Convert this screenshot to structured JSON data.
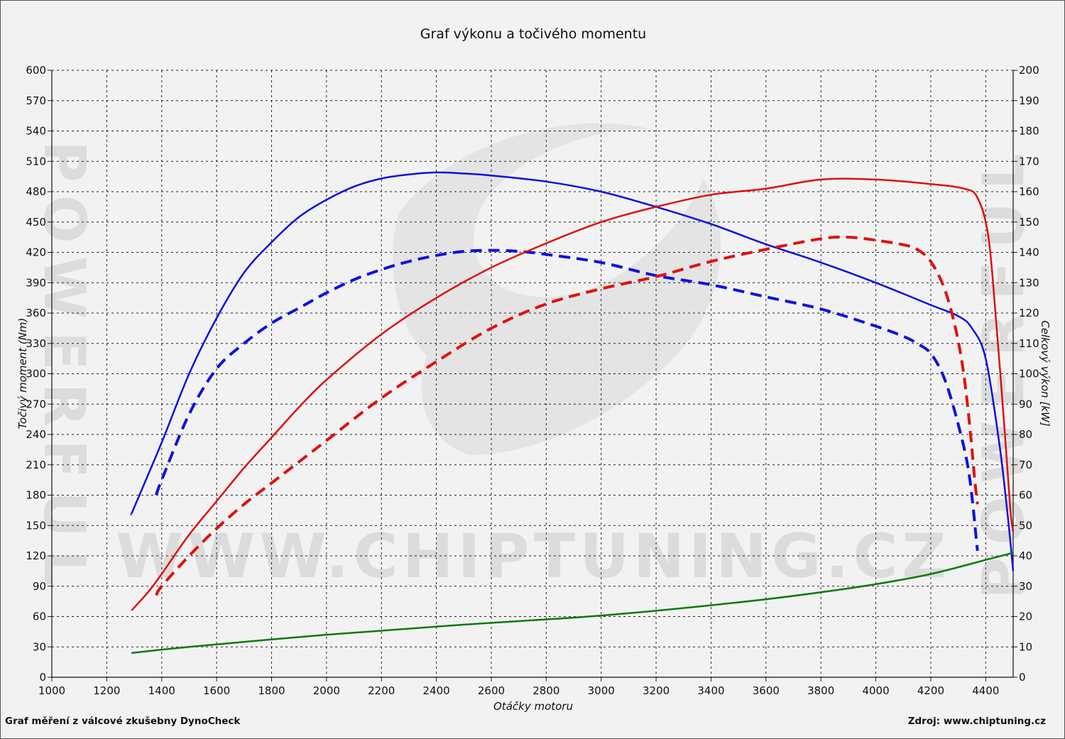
{
  "chart_data": {
    "type": "line",
    "title": "Graf výkonu a točivého momentu",
    "xlabel": "Otáčky motoru",
    "ylabel_left": "Točivý moment (Nm)",
    "ylabel_right": "Celkový výkon [kW]",
    "xlim": [
      1000,
      4500
    ],
    "ylim_left": [
      0,
      600
    ],
    "ylim_right": [
      0,
      200
    ],
    "x_ticks": [
      "1000",
      "1200",
      "1400",
      "1600",
      "1800",
      "2000",
      "2200",
      "2400",
      "2600",
      "2800",
      "3000",
      "3200",
      "3400",
      "3600",
      "3800",
      "4000",
      "4200",
      "4400"
    ],
    "y_ticks_left": [
      "0",
      "30",
      "60",
      "90",
      "120",
      "150",
      "180",
      "210",
      "240",
      "270",
      "300",
      "330",
      "360",
      "390",
      "420",
      "450",
      "480",
      "510",
      "540",
      "570",
      "600"
    ],
    "y_ticks_right": [
      "0",
      "10",
      "20",
      "30",
      "40",
      "50",
      "60",
      "70",
      "80",
      "90",
      "100",
      "110",
      "120",
      "130",
      "140",
      "150",
      "160",
      "170",
      "180",
      "190",
      "200"
    ],
    "grid": true,
    "series": [
      {
        "axis": "left",
        "color": "#1010e0",
        "style": "solid",
        "points": [
          [
            1290,
            162
          ],
          [
            1300,
            168
          ],
          [
            1400,
            232
          ],
          [
            1500,
            300
          ],
          [
            1600,
            355
          ],
          [
            1700,
            400
          ],
          [
            1800,
            430
          ],
          [
            1900,
            455
          ],
          [
            2000,
            472
          ],
          [
            2100,
            485
          ],
          [
            2200,
            493
          ],
          [
            2300,
            497
          ],
          [
            2400,
            499
          ],
          [
            2500,
            498
          ],
          [
            2600,
            496
          ],
          [
            2800,
            490
          ],
          [
            3000,
            480
          ],
          [
            3200,
            465
          ],
          [
            3400,
            448
          ],
          [
            3600,
            428
          ],
          [
            3800,
            410
          ],
          [
            4000,
            390
          ],
          [
            4200,
            368
          ],
          [
            4300,
            357
          ],
          [
            4350,
            345
          ],
          [
            4400,
            315
          ],
          [
            4450,
            230
          ],
          [
            4480,
            160
          ],
          [
            4500,
            105
          ]
        ]
      },
      {
        "axis": "left",
        "color": "#1010e0",
        "style": "dashed",
        "points": [
          [
            1380,
            180
          ],
          [
            1400,
            195
          ],
          [
            1500,
            260
          ],
          [
            1600,
            305
          ],
          [
            1700,
            330
          ],
          [
            1800,
            350
          ],
          [
            1900,
            365
          ],
          [
            2000,
            380
          ],
          [
            2100,
            393
          ],
          [
            2200,
            403
          ],
          [
            2300,
            411
          ],
          [
            2400,
            417
          ],
          [
            2500,
            421
          ],
          [
            2600,
            422
          ],
          [
            2700,
            421
          ],
          [
            2800,
            418
          ],
          [
            3000,
            410
          ],
          [
            3200,
            397
          ],
          [
            3400,
            388
          ],
          [
            3600,
            376
          ],
          [
            3800,
            364
          ],
          [
            4000,
            347
          ],
          [
            4100,
            337
          ],
          [
            4150,
            330
          ],
          [
            4200,
            320
          ],
          [
            4250,
            295
          ],
          [
            4300,
            250
          ],
          [
            4340,
            200
          ],
          [
            4370,
            125
          ]
        ]
      },
      {
        "axis": "right",
        "color": "#e01010",
        "style": "solid",
        "points": [
          [
            1290,
            22
          ],
          [
            1350,
            28
          ],
          [
            1400,
            34
          ],
          [
            1500,
            47
          ],
          [
            1600,
            58
          ],
          [
            1700,
            69
          ],
          [
            1800,
            79
          ],
          [
            1900,
            89
          ],
          [
            2000,
            98
          ],
          [
            2200,
            113
          ],
          [
            2400,
            125
          ],
          [
            2600,
            135
          ],
          [
            2800,
            143
          ],
          [
            3000,
            150
          ],
          [
            3200,
            155
          ],
          [
            3400,
            159
          ],
          [
            3600,
            161
          ],
          [
            3800,
            164
          ],
          [
            4000,
            164
          ],
          [
            4200,
            162.5
          ],
          [
            4320,
            161
          ],
          [
            4370,
            158
          ],
          [
            4410,
            145
          ],
          [
            4440,
            115
          ],
          [
            4470,
            80
          ],
          [
            4490,
            55
          ],
          [
            4500,
            48
          ]
        ]
      },
      {
        "axis": "right",
        "color": "#e01010",
        "style": "dashed",
        "points": [
          [
            1380,
            27
          ],
          [
            1400,
            30
          ],
          [
            1500,
            40
          ],
          [
            1600,
            49
          ],
          [
            1700,
            57
          ],
          [
            1800,
            64
          ],
          [
            1900,
            71
          ],
          [
            2000,
            78
          ],
          [
            2200,
            92
          ],
          [
            2400,
            104
          ],
          [
            2600,
            115
          ],
          [
            2800,
            123
          ],
          [
            3000,
            128
          ],
          [
            3200,
            132
          ],
          [
            3400,
            137
          ],
          [
            3600,
            141
          ],
          [
            3800,
            144.5
          ],
          [
            3900,
            145
          ],
          [
            4000,
            144
          ],
          [
            4100,
            142.5
          ],
          [
            4150,
            141
          ],
          [
            4200,
            137
          ],
          [
            4250,
            128
          ],
          [
            4290,
            115
          ],
          [
            4320,
            100
          ],
          [
            4345,
            80
          ],
          [
            4360,
            65
          ],
          [
            4370,
            57
          ]
        ]
      },
      {
        "axis": "left",
        "color": "#0a7a0a",
        "style": "solid",
        "points": [
          [
            1290,
            24
          ],
          [
            1500,
            30
          ],
          [
            2000,
            42
          ],
          [
            2500,
            52
          ],
          [
            3000,
            61
          ],
          [
            3500,
            74
          ],
          [
            3800,
            84
          ],
          [
            4000,
            92
          ],
          [
            4200,
            102
          ],
          [
            4400,
            116
          ],
          [
            4500,
            123
          ]
        ]
      }
    ]
  },
  "footer": {
    "left": "Graf měření z válcové zkušebny DynoCheck",
    "right": "Zdroj: www.chiptuning.cz"
  },
  "watermark": {
    "text": "WWW.CHIPTUNING.CZ",
    "side_text": "POWERFUL"
  }
}
